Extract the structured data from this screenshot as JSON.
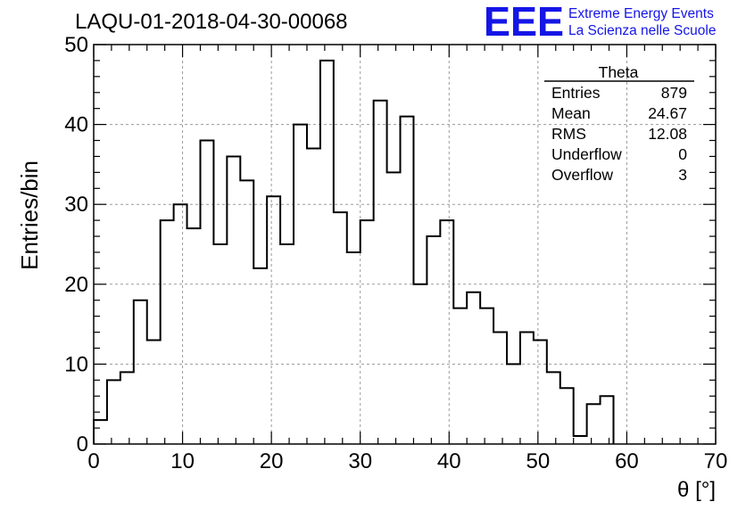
{
  "logo": {
    "mark": "EEE",
    "line1": "Extreme Energy Events",
    "line2": "La Scienza nelle Scuole",
    "color": "#1515e6"
  },
  "chart_data": {
    "type": "histogram",
    "title": "LAQU-01-2018-04-30-00068",
    "xlabel": "θ [°]",
    "ylabel": "Entries/bin",
    "xlim": [
      0,
      70
    ],
    "ylim": [
      0,
      50
    ],
    "xticks": [
      0,
      10,
      20,
      30,
      40,
      50,
      60,
      70
    ],
    "yticks": [
      0,
      10,
      20,
      30,
      40,
      50
    ],
    "grid": true,
    "bin_width": 1.5,
    "bin_start": 0,
    "values": [
      3,
      8,
      9,
      18,
      13,
      28,
      30,
      27,
      38,
      25,
      36,
      33,
      22,
      31,
      25,
      40,
      37,
      48,
      29,
      24,
      28,
      43,
      34,
      41,
      20,
      26,
      28,
      17,
      19,
      17,
      14,
      10,
      14,
      13,
      9,
      7,
      1,
      5,
      6
    ],
    "stats": {
      "title": "Theta",
      "rows": [
        {
          "label": "Entries",
          "value": "879"
        },
        {
          "label": "Mean",
          "value": "24.67"
        },
        {
          "label": "RMS",
          "value": "12.08"
        },
        {
          "label": "Underflow",
          "value": "0"
        },
        {
          "label": "Overflow",
          "value": "3"
        }
      ]
    }
  }
}
